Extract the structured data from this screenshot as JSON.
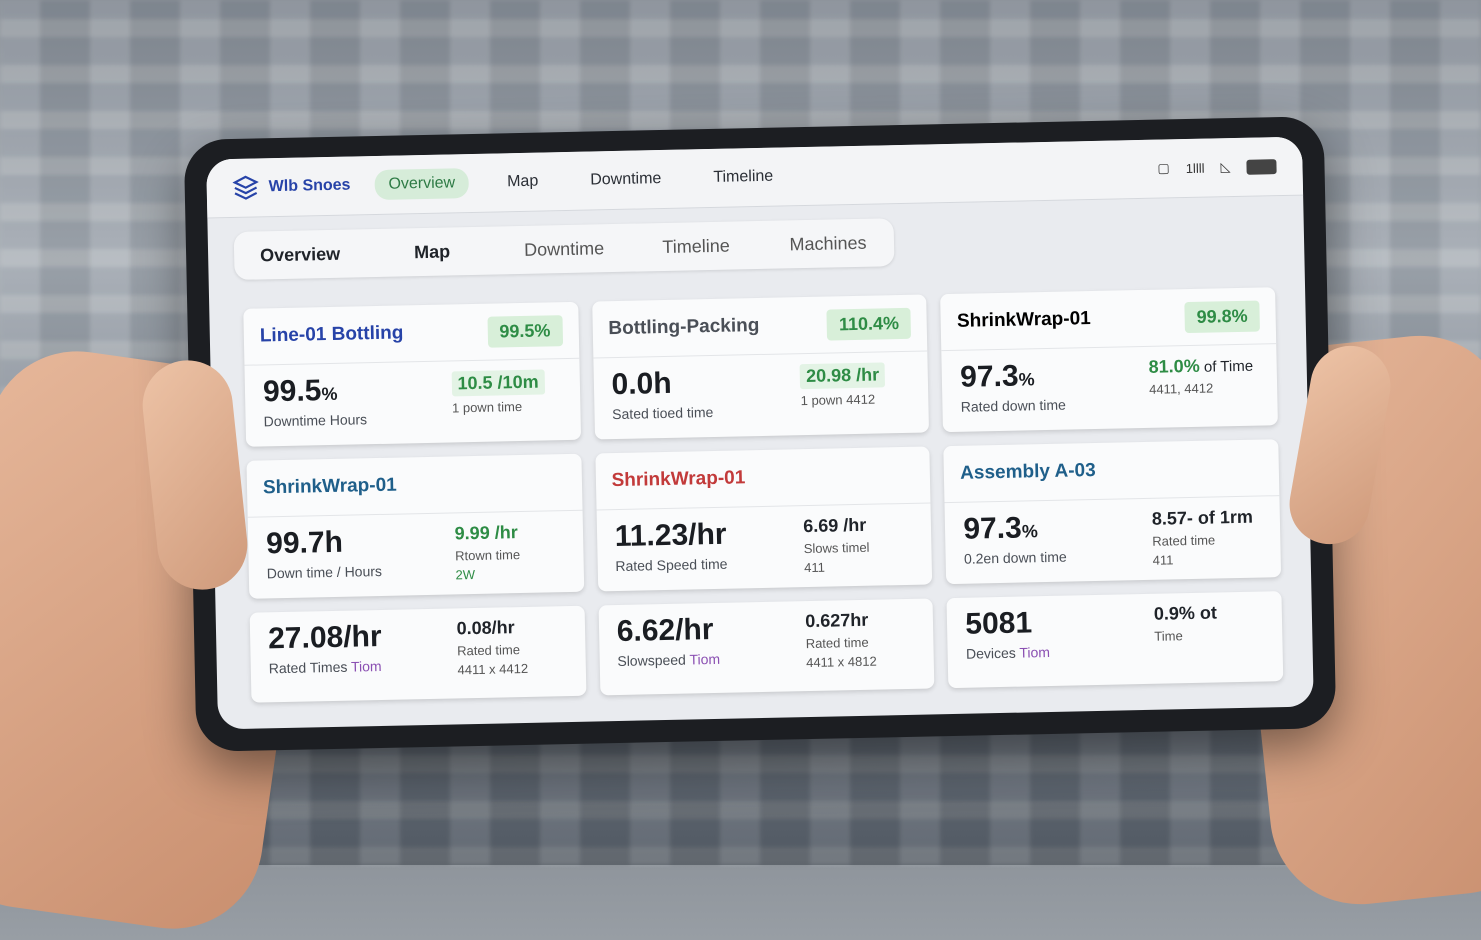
{
  "app": {
    "brand": "Wlb Snoes"
  },
  "toptabs": [
    "Overview",
    "Map",
    "Downtime",
    "Timeline"
  ],
  "status_icons": [
    "box-icon",
    "signal-icon",
    "wifi-icon",
    "battery-icon"
  ],
  "status_text": "1llll",
  "subtabs": [
    "Overview",
    "Map",
    "Downtime",
    "Timeline",
    "Machines"
  ],
  "cards": [
    {
      "title": "Line-01 Bottling",
      "title_color": "#2743a8",
      "badge": "99.5%",
      "big": "99.5",
      "big_unit": "%",
      "sub": "Downtime Hours",
      "right_value": "10.5 /10m",
      "right_sub": "1  pown time",
      "right_extra": ""
    },
    {
      "title": "Bottling-Packing",
      "title_color": "#4a4f57",
      "badge": "110.4%",
      "big": "0.0h",
      "big_unit": "",
      "sub": "Sated tioed time",
      "right_value": "20.98 /hr",
      "right_sub": "1  pown 4412",
      "right_extra": ""
    },
    {
      "title": "ShrinkWrap-01",
      "title_color": "#1f2329",
      "badge": "99.8%",
      "big": "97.3",
      "big_unit": "%",
      "sub": "Rated down time",
      "right_value": "81.0%",
      "right_value_suffix": " of Time",
      "right_sub": "4411, 4412",
      "right_extra": ""
    },
    {
      "title": "ShrinkWrap-01",
      "title_color": "#1f5f8a",
      "badge": "",
      "big": "99.7h",
      "big_unit": "",
      "sub": "Down time / Hours",
      "right_value": "9.99 /hr",
      "right_sub": "Rtown time",
      "right_extra": "2W"
    },
    {
      "title": "ShrinkWrap-01",
      "title_color": "#c23a3a",
      "badge": "",
      "big": "11.23/hr",
      "big_unit": "",
      "sub": "Rated Speed time",
      "right_value": "6.69 /hr",
      "right_sub": "Slows timel",
      "right_extra": "411"
    },
    {
      "title": "Assembly A-03",
      "title_color": "#1f5f8a",
      "badge": "",
      "big": "97.3",
      "big_unit": "%",
      "sub": "0.2en down time",
      "right_value": "8.57- of 1rm",
      "right_sub": "Rated time",
      "right_extra": "411"
    },
    {
      "title": "",
      "badge": "",
      "big": "27.08/hr",
      "big_unit": "",
      "sub": "Rated Times",
      "sub_accent": "Tiom",
      "right_value": "0.08/hr",
      "right_sub": "Rated time",
      "right_extra": "4411 x 4412"
    },
    {
      "title": "",
      "badge": "",
      "big": "6.62/hr",
      "big_unit": "",
      "sub": "Slowspeed",
      "sub_accent": "Tiom",
      "right_value": "0.627hr",
      "right_sub": "Rated time",
      "right_extra": "4411 x 4812"
    },
    {
      "title": "",
      "badge": "",
      "big": "5081",
      "big_unit": "",
      "sub": "Devices",
      "sub_accent": "Tiom",
      "right_value": "0.9% ot",
      "right_sub": "Time",
      "right_extra": ""
    }
  ]
}
